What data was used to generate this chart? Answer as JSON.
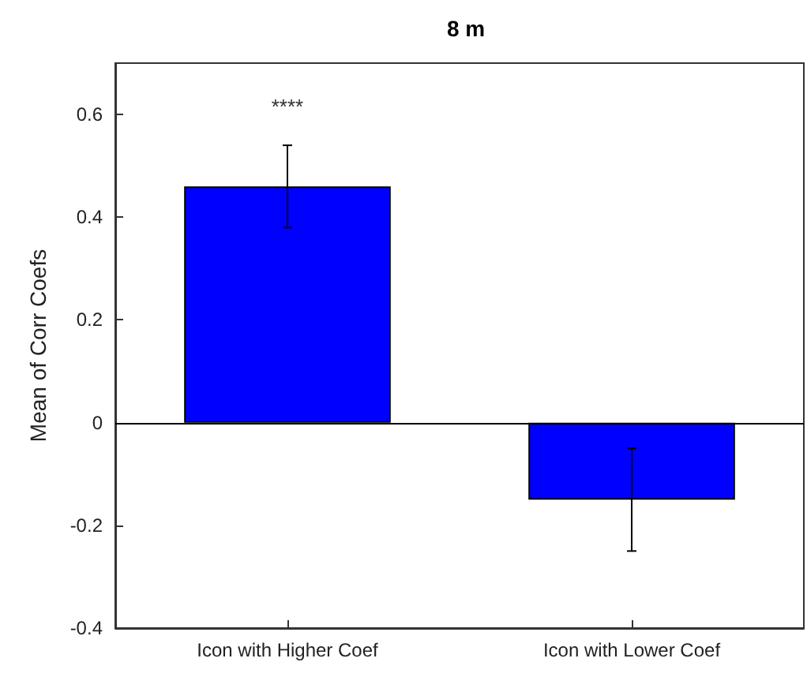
{
  "chart_data": {
    "type": "bar",
    "title": "8 m",
    "ylabel": "Mean of Corr Coefs",
    "categories": [
      "Icon with Higher Coef",
      "Icon with Lower Coef"
    ],
    "series": [
      {
        "color": "#0000ff",
        "values": [
          0.46,
          -0.15
        ],
        "errors": [
          0.08,
          0.1
        ]
      }
    ],
    "ylim": [
      -0.4,
      0.7
    ],
    "yticks": [
      -0.4,
      -0.2,
      0,
      0.2,
      0.4,
      0.6
    ],
    "ref_lines": [
      {
        "axis": "y",
        "value": 0,
        "color": "#000000"
      }
    ],
    "annotations": [
      "****"
    ]
  }
}
